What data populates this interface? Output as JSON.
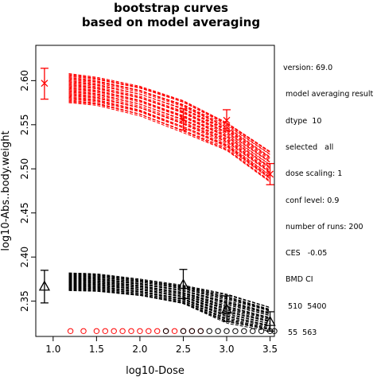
{
  "chart_data": {
    "type": "scatter",
    "title": "bootstrap curves",
    "subtitle": "based on model averaging",
    "xlabel": "log10-Dose",
    "ylabel": "log10-Abs..body.weight",
    "xlim": [
      0.8,
      3.55
    ],
    "ylim": [
      2.31,
      2.64
    ],
    "xticks": [
      "1.0",
      "1.5",
      "2.0",
      "2.5",
      "3.0",
      "3.5"
    ],
    "yticks": [
      "2.35",
      "2.40",
      "2.45",
      "2.50",
      "2.55",
      "2.60"
    ],
    "grid": false,
    "series": [
      {
        "color": "#ff0000",
        "observed_points": [
          {
            "x": 0.9,
            "y": 2.597,
            "lower": 2.579,
            "upper": 2.614,
            "marker": "x"
          },
          {
            "x": 2.5,
            "y": 2.556,
            "lower": 2.544,
            "upper": 2.568,
            "marker": "x"
          },
          {
            "x": 3.0,
            "y": 2.555,
            "lower": 2.543,
            "upper": 2.567,
            "marker": "x"
          },
          {
            "x": 3.5,
            "y": 2.494,
            "lower": 2.482,
            "upper": 2.506,
            "marker": "x"
          }
        ],
        "curve_envelope": {
          "x": [
            1.18,
            1.5,
            2.0,
            2.5,
            3.0,
            3.5
          ],
          "low": [
            2.575,
            2.572,
            2.56,
            2.541,
            2.521,
            2.485
          ],
          "high": [
            2.608,
            2.604,
            2.594,
            2.578,
            2.553,
            2.52
          ]
        },
        "bmd_points_x": [
          1.2,
          1.35,
          1.5,
          1.6,
          1.7,
          1.8,
          1.9,
          2.0,
          2.1,
          2.2,
          2.3,
          2.4,
          2.5,
          2.6,
          2.7
        ]
      },
      {
        "color": "#000000",
        "observed_points": [
          {
            "x": 0.9,
            "y": 2.367,
            "lower": 2.348,
            "upper": 2.385,
            "marker": "triangle"
          },
          {
            "x": 2.5,
            "y": 2.369,
            "lower": 2.353,
            "upper": 2.386,
            "marker": "triangle"
          },
          {
            "x": 3.0,
            "y": 2.341,
            "lower": 2.327,
            "upper": 2.356,
            "marker": "triangle"
          },
          {
            "x": 3.5,
            "y": 2.327,
            "lower": 2.316,
            "upper": 2.338,
            "marker": "triangle"
          }
        ],
        "curve_envelope": {
          "x": [
            1.18,
            1.5,
            2.0,
            2.5,
            3.0,
            3.5
          ],
          "low": [
            2.362,
            2.361,
            2.356,
            2.347,
            2.325,
            2.316
          ],
          "high": [
            2.382,
            2.381,
            2.375,
            2.368,
            2.358,
            2.343
          ]
        },
        "bmd_points_x": [
          2.3,
          2.5,
          2.6,
          2.7,
          2.8,
          2.9,
          3.0,
          3.1,
          3.2,
          3.3,
          3.4,
          3.5,
          3.55
        ]
      }
    ],
    "bmd_points_y": 2.316
  },
  "info_lines": [
    "version: 69.0",
    " model averaging result",
    " dtype  10",
    " selected   all",
    " dose scaling: 1",
    " conf level: 0.9",
    " number of runs: 200",
    " CES   -0.05",
    " BMD CI",
    "  510  5400",
    "  55  563"
  ]
}
